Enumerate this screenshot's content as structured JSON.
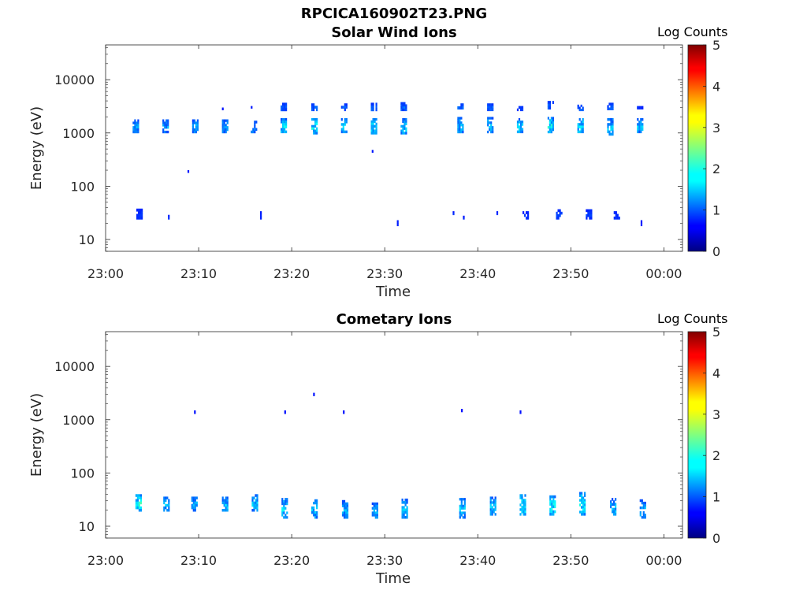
{
  "figure": {
    "title": "RPCICA160902T23.PNG"
  },
  "chart_data": [
    {
      "type": "heatmap",
      "title": "Solar Wind Ions",
      "xlabel": "Time",
      "ylabel": "Energy (eV)",
      "x_ticks": [
        "23:00",
        "23:10",
        "23:20",
        "23:30",
        "23:40",
        "23:50",
        "00:00"
      ],
      "y_ticks": [
        "10",
        "100",
        "1000",
        "10000"
      ],
      "y_scale": "log",
      "xlim": [
        "23:00",
        "00:02"
      ],
      "ylim": [
        6,
        45000
      ],
      "colorbar": {
        "label": "Log Counts",
        "range": [
          0,
          5
        ],
        "ticks": [
          "0",
          "1",
          "2",
          "3",
          "4",
          "5"
        ],
        "colormap": "jet"
      },
      "blobs": [
        {
          "t": 3.2,
          "e_lo": 1000,
          "e_hi": 1800,
          "level": 0.8
        },
        {
          "t": 3.6,
          "e_lo": 24,
          "e_hi": 38,
          "level": 0.3
        },
        {
          "t": 6.4,
          "e_lo": 1000,
          "e_hi": 1800,
          "level": 0.8
        },
        {
          "t": 7.0,
          "e_lo": 24,
          "e_hi": 29,
          "level": 0.2
        },
        {
          "t": 9.6,
          "e_lo": 1000,
          "e_hi": 1800,
          "level": 0.9
        },
        {
          "t": 9.1,
          "e_lo": 180,
          "e_hi": 200,
          "level": 0.2
        },
        {
          "t": 12.8,
          "e_lo": 1000,
          "e_hi": 1800,
          "level": 0.8
        },
        {
          "t": 12.8,
          "e_lo": 2700,
          "e_hi": 3000,
          "level": 0.2
        },
        {
          "t": 15.9,
          "e_lo": 1000,
          "e_hi": 1700,
          "level": 0.7
        },
        {
          "t": 15.9,
          "e_lo": 2900,
          "e_hi": 3200,
          "level": 0.2
        },
        {
          "t": 16.9,
          "e_lo": 24,
          "e_hi": 34,
          "level": 0.2
        },
        {
          "t": 19.1,
          "e_lo": 1000,
          "e_hi": 1900,
          "level": 1.1
        },
        {
          "t": 19.1,
          "e_lo": 2600,
          "e_hi": 3700,
          "level": 0.5
        },
        {
          "t": 22.4,
          "e_lo": 950,
          "e_hi": 1900,
          "level": 1.3
        },
        {
          "t": 22.4,
          "e_lo": 2600,
          "e_hi": 3600,
          "level": 0.5
        },
        {
          "t": 25.6,
          "e_lo": 1000,
          "e_hi": 1900,
          "level": 1.1
        },
        {
          "t": 25.6,
          "e_lo": 2600,
          "e_hi": 3600,
          "level": 0.5
        },
        {
          "t": 28.8,
          "e_lo": 950,
          "e_hi": 1900,
          "level": 1.1
        },
        {
          "t": 28.8,
          "e_lo": 2600,
          "e_hi": 3700,
          "level": 0.5
        },
        {
          "t": 28.9,
          "e_lo": 430,
          "e_hi": 480,
          "level": 0.2
        },
        {
          "t": 32.0,
          "e_lo": 950,
          "e_hi": 1900,
          "level": 1.1
        },
        {
          "t": 32.0,
          "e_lo": 2600,
          "e_hi": 3800,
          "level": 0.5
        },
        {
          "t": 31.6,
          "e_lo": 18,
          "e_hi": 23,
          "level": 0.2
        },
        {
          "t": 38.1,
          "e_lo": 1000,
          "e_hi": 2000,
          "level": 1.0
        },
        {
          "t": 38.1,
          "e_lo": 2800,
          "e_hi": 3600,
          "level": 0.5
        },
        {
          "t": 37.6,
          "e_lo": 29,
          "e_hi": 34,
          "level": 0.2
        },
        {
          "t": 38.7,
          "e_lo": 24,
          "e_hi": 28,
          "level": 0.2
        },
        {
          "t": 41.3,
          "e_lo": 1000,
          "e_hi": 2000,
          "level": 1.0
        },
        {
          "t": 41.3,
          "e_lo": 2600,
          "e_hi": 3600,
          "level": 0.5
        },
        {
          "t": 42.3,
          "e_lo": 29,
          "e_hi": 34,
          "level": 0.2
        },
        {
          "t": 44.5,
          "e_lo": 1000,
          "e_hi": 1900,
          "level": 1.1
        },
        {
          "t": 44.5,
          "e_lo": 2600,
          "e_hi": 3200,
          "level": 0.4
        },
        {
          "t": 45.1,
          "e_lo": 24,
          "e_hi": 34,
          "level": 0.3
        },
        {
          "t": 47.8,
          "e_lo": 1000,
          "e_hi": 2000,
          "level": 1.3
        },
        {
          "t": 47.8,
          "e_lo": 2800,
          "e_hi": 4000,
          "level": 0.5
        },
        {
          "t": 48.7,
          "e_lo": 24,
          "e_hi": 37,
          "level": 0.3
        },
        {
          "t": 51.0,
          "e_lo": 1000,
          "e_hi": 1900,
          "level": 1.2
        },
        {
          "t": 51.0,
          "e_lo": 2600,
          "e_hi": 3400,
          "level": 0.5
        },
        {
          "t": 51.9,
          "e_lo": 24,
          "e_hi": 37,
          "level": 0.3
        },
        {
          "t": 54.2,
          "e_lo": 900,
          "e_hi": 1900,
          "level": 1.0
        },
        {
          "t": 54.2,
          "e_lo": 2700,
          "e_hi": 3700,
          "level": 0.5
        },
        {
          "t": 54.9,
          "e_lo": 24,
          "e_hi": 34,
          "level": 0.3
        },
        {
          "t": 57.4,
          "e_lo": 1000,
          "e_hi": 1900,
          "level": 1.0
        },
        {
          "t": 57.4,
          "e_lo": 2800,
          "e_hi": 3200,
          "level": 0.3
        },
        {
          "t": 57.8,
          "e_lo": 18,
          "e_hi": 23,
          "level": 0.2
        }
      ]
    },
    {
      "type": "heatmap",
      "title": "Cometary Ions",
      "xlabel": "Time",
      "ylabel": "Energy (eV)",
      "x_ticks": [
        "23:00",
        "23:10",
        "23:20",
        "23:30",
        "23:40",
        "23:50",
        "00:00"
      ],
      "y_ticks": [
        "10",
        "100",
        "1000",
        "10000"
      ],
      "y_scale": "log",
      "xlim": [
        "23:00",
        "00:02"
      ],
      "ylim": [
        6,
        45000
      ],
      "colorbar": {
        "label": "Log Counts",
        "range": [
          0,
          5
        ],
        "ticks": [
          "0",
          "1",
          "2",
          "3",
          "4",
          "5"
        ],
        "colormap": "jet"
      },
      "blobs": [
        {
          "t": 3.5,
          "e_lo": 19,
          "e_hi": 40,
          "level": 1.4
        },
        {
          "t": 6.5,
          "e_lo": 19,
          "e_hi": 36,
          "level": 1.0
        },
        {
          "t": 9.5,
          "e_lo": 19,
          "e_hi": 36,
          "level": 0.9
        },
        {
          "t": 12.8,
          "e_lo": 19,
          "e_hi": 36,
          "level": 1.0
        },
        {
          "t": 16.0,
          "e_lo": 19,
          "e_hi": 40,
          "level": 1.0
        },
        {
          "t": 19.2,
          "e_lo": 14,
          "e_hi": 34,
          "level": 1.1
        },
        {
          "t": 22.4,
          "e_lo": 14,
          "e_hi": 32,
          "level": 1.0
        },
        {
          "t": 25.7,
          "e_lo": 14,
          "e_hi": 31,
          "level": 0.9
        },
        {
          "t": 28.9,
          "e_lo": 14,
          "e_hi": 28,
          "level": 0.9
        },
        {
          "t": 32.1,
          "e_lo": 14,
          "e_hi": 33,
          "level": 1.0
        },
        {
          "t": 38.3,
          "e_lo": 14,
          "e_hi": 34,
          "level": 1.0
        },
        {
          "t": 41.6,
          "e_lo": 16,
          "e_hi": 36,
          "level": 1.0
        },
        {
          "t": 44.8,
          "e_lo": 16,
          "e_hi": 40,
          "level": 1.3
        },
        {
          "t": 48.0,
          "e_lo": 16,
          "e_hi": 38,
          "level": 1.3
        },
        {
          "t": 51.2,
          "e_lo": 16,
          "e_hi": 44,
          "level": 1.3
        },
        {
          "t": 54.5,
          "e_lo": 16,
          "e_hi": 34,
          "level": 1.0
        },
        {
          "t": 57.7,
          "e_lo": 14,
          "e_hi": 32,
          "level": 0.9
        },
        {
          "t": 9.8,
          "e_lo": 1300,
          "e_hi": 1500,
          "level": 0.1
        },
        {
          "t": 19.5,
          "e_lo": 1300,
          "e_hi": 1500,
          "level": 0.1
        },
        {
          "t": 22.6,
          "e_lo": 2800,
          "e_hi": 3200,
          "level": 0.1
        },
        {
          "t": 25.8,
          "e_lo": 1300,
          "e_hi": 1500,
          "level": 0.1
        },
        {
          "t": 38.5,
          "e_lo": 1400,
          "e_hi": 1600,
          "level": 0.1
        },
        {
          "t": 44.8,
          "e_lo": 1300,
          "e_hi": 1500,
          "level": 0.1
        }
      ]
    }
  ]
}
